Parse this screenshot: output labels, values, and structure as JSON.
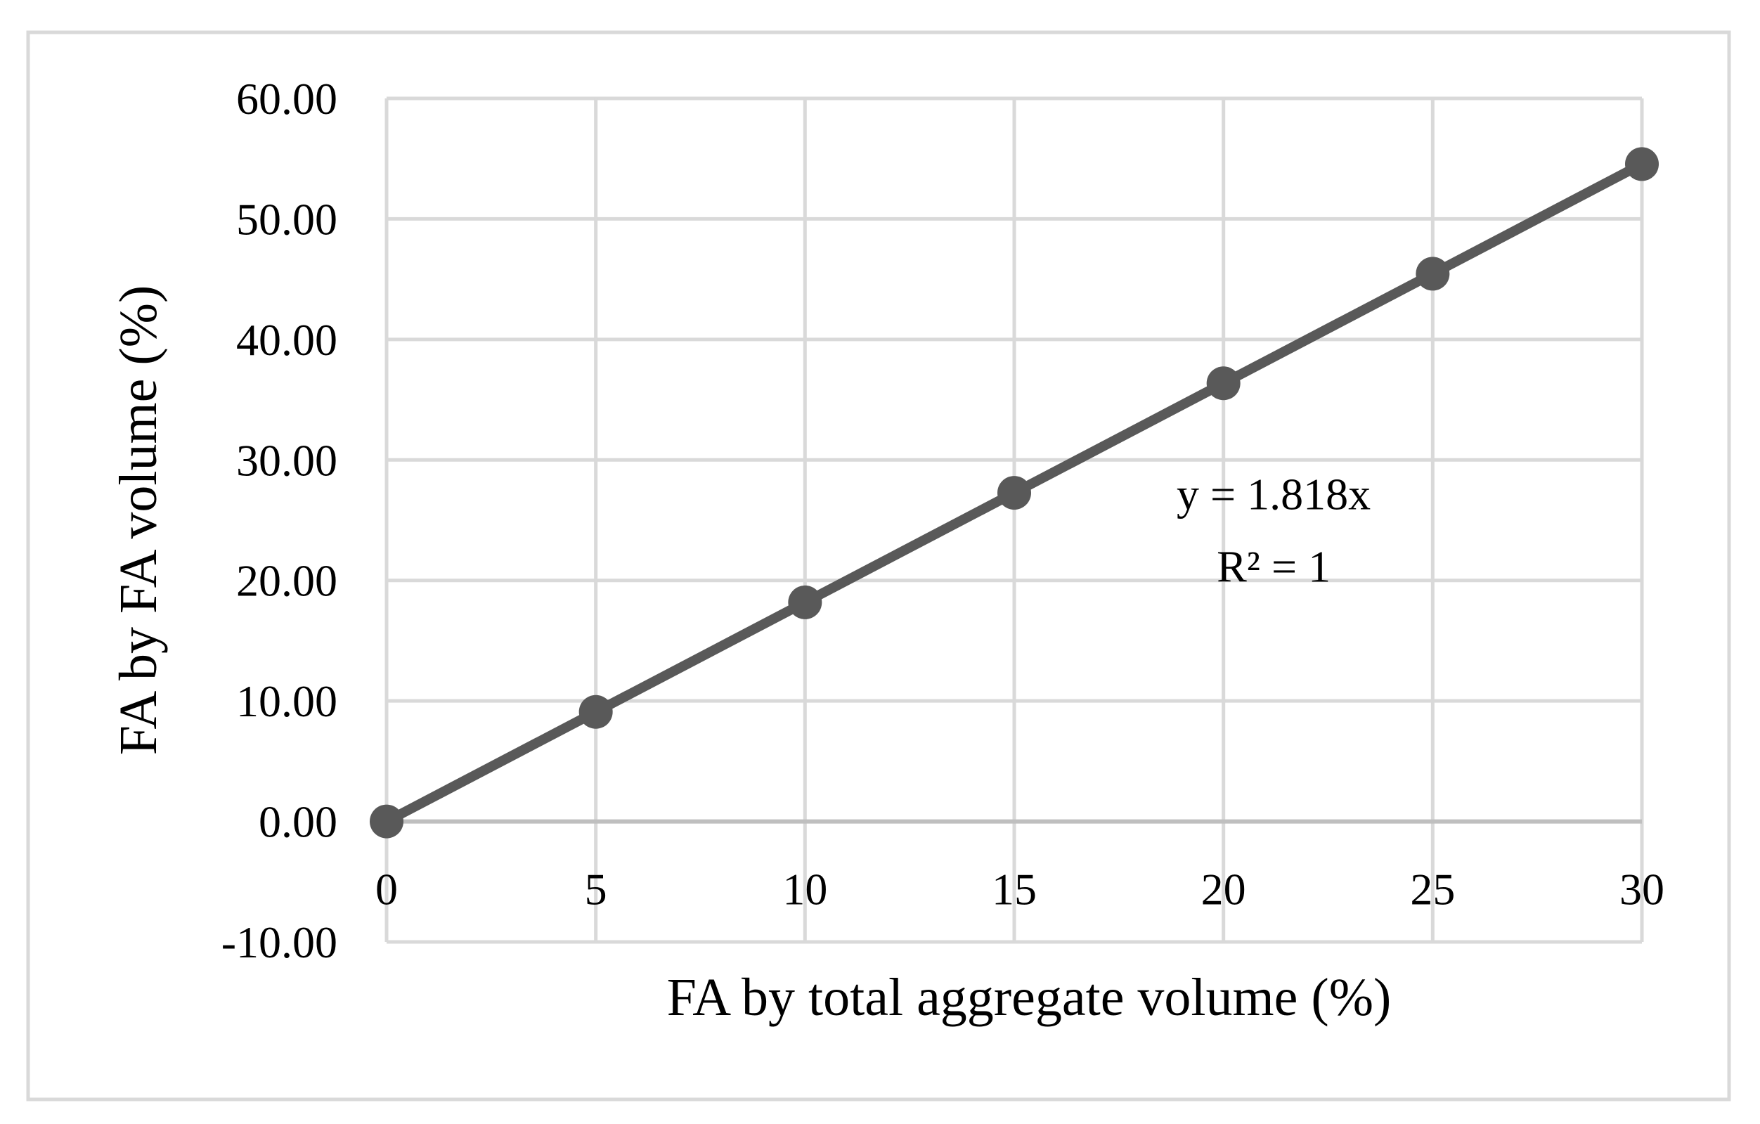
{
  "chart_data": {
    "type": "line",
    "title": "",
    "xlabel": "FA by total aggregate volume (%)",
    "ylabel": "FA by FA volume (%)",
    "x": [
      0,
      5,
      10,
      15,
      20,
      25,
      30
    ],
    "series": [
      {
        "values": [
          0.0,
          9.09,
          18.18,
          27.27,
          36.36,
          45.45,
          54.55
        ],
        "color": "#595959",
        "marker": "circle"
      }
    ],
    "xlim": [
      0,
      30
    ],
    "ylim": [
      -10,
      60
    ],
    "x_ticks": [
      0,
      5,
      10,
      15,
      20,
      25,
      30
    ],
    "x_tick_labels": [
      "0",
      "5",
      "10",
      "15",
      "20",
      "25",
      "30"
    ],
    "y_ticks": [
      -10,
      0,
      10,
      20,
      30,
      40,
      50,
      60
    ],
    "y_tick_labels": [
      "-10.00",
      "0.00",
      "10.00",
      "20.00",
      "30.00",
      "40.00",
      "50.00",
      "60.00"
    ],
    "grid": true,
    "legend": "none",
    "annotations": [
      {
        "text": "y = 1.818x",
        "x": 21.2,
        "y": 25.9
      },
      {
        "text": "R² = 1",
        "x": 21.2,
        "y": 19.9
      }
    ],
    "colors": {
      "series": "#595959",
      "grid": "#d9d9d9",
      "frame": "#d9d9d9",
      "zero_axis": "#bfbfbf"
    }
  }
}
